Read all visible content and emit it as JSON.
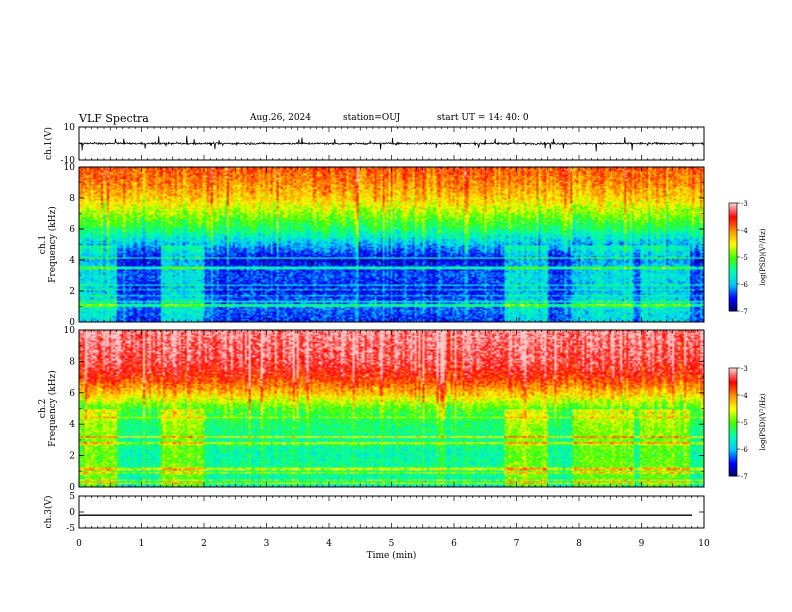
{
  "header": {
    "title": "VLF Spectra",
    "date": "Aug.26, 2024",
    "station": "station=OUJ",
    "start": "start UT = 14: 40: 0"
  },
  "colors": {
    "spectrum_ramp": [
      "#000060",
      "#0000ff",
      "#00c8ff",
      "#00ffb0",
      "#40ff00",
      "#ffff00",
      "#ff9000",
      "#ff0000",
      "#ffc8c8"
    ],
    "trace": "#000000"
  },
  "chart_data": [
    {
      "type": "line",
      "panel": "ch1-waveform",
      "ylabel": "ch.1(V)",
      "ylim": [
        -10,
        10
      ],
      "yticks": [
        "10",
        "-10"
      ],
      "x_range_min": [
        0,
        10
      ],
      "series": [
        {
          "values_description_omitted": true,
          "mean": 0.0,
          "amplitude": 1.2
        }
      ]
    },
    {
      "type": "heatmap",
      "panel": "ch1-spectrogram",
      "ylabel_top": "ch.1",
      "ylabel": "Frequency (kHz)",
      "ylim": [
        0,
        10
      ],
      "yticks": [
        "0",
        "2",
        "4",
        "6",
        "8",
        "10"
      ],
      "colorbar_label": "log(PSD)(V²/Hz)",
      "colorbar_range": [
        -7,
        -3
      ],
      "colorbar_ticks": [
        "-3",
        "-4",
        "-5",
        "-6",
        "-7"
      ],
      "level_profile": [
        -6.4,
        -6.2,
        -6.5,
        -6.3,
        -6.6,
        -6.0,
        -5.3,
        -4.8,
        -4.3,
        -4.0,
        -3.8
      ],
      "bright_intervals_min": [
        [
          0.0,
          0.6
        ],
        [
          1.3,
          2.0
        ],
        [
          6.8,
          7.5
        ],
        [
          7.9,
          8.9
        ],
        [
          9.0,
          9.8
        ]
      ]
    },
    {
      "type": "heatmap",
      "panel": "ch2-spectrogram",
      "ylabel_top": "ch.2",
      "ylabel": "Frequency (kHz)",
      "ylim": [
        0,
        10
      ],
      "yticks": [
        "0",
        "2",
        "4",
        "6",
        "8",
        "10"
      ],
      "colorbar_label": "log(PSD)(V²/Hz)",
      "colorbar_range": [
        -7,
        -3
      ],
      "colorbar_ticks": [
        "-3",
        "-4",
        "-5",
        "-6",
        "-7"
      ],
      "level_profile": [
        -5.6,
        -5.4,
        -5.5,
        -5.4,
        -5.3,
        -5.0,
        -4.2,
        -3.6,
        -3.3,
        -3.2,
        -3.1
      ],
      "bright_intervals_min": [
        [
          0.0,
          0.6
        ],
        [
          1.3,
          2.0
        ],
        [
          6.8,
          7.5
        ],
        [
          7.9,
          8.9
        ],
        [
          9.0,
          9.8
        ]
      ]
    },
    {
      "type": "line",
      "panel": "ch3-waveform",
      "ylabel": "ch.3(V)",
      "ylim": [
        -5,
        5
      ],
      "yticks": [
        "5",
        "0",
        "-5"
      ],
      "series": [
        {
          "constant": -1.0
        }
      ]
    }
  ],
  "x_axis": {
    "label": "Time (min)",
    "range": [
      0,
      10
    ],
    "ticks": [
      "0",
      "1",
      "2",
      "3",
      "4",
      "5",
      "6",
      "7",
      "8",
      "9",
      "10"
    ]
  }
}
